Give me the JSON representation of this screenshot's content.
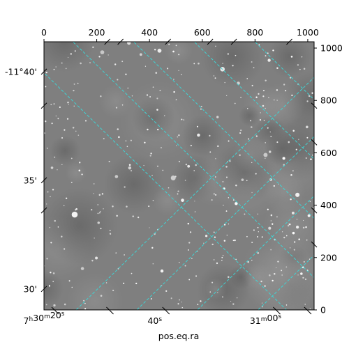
{
  "chart_data": {
    "type": "image",
    "xlabel": "pos.eq.ra",
    "ylabel": "",
    "pixel_axis": {
      "range": [
        0,
        1024
      ],
      "top_ticks": [
        0,
        200,
        400,
        600,
        800,
        1000
      ],
      "right_ticks": [
        0,
        200,
        400,
        600,
        800,
        1000
      ]
    },
    "ra_ticks": [
      {
        "label_h": "7",
        "label_hs": "h",
        "label_m": "30",
        "label_ms": "m",
        "label_s": "20",
        "label_ss": "s",
        "pix": 0
      },
      {
        "label_h": "",
        "label_hs": "",
        "label_m": "",
        "label_ms": "",
        "label_s": "40",
        "label_ss": "s",
        "pix": 420
      },
      {
        "label_h": "",
        "label_hs": "",
        "label_m": "31",
        "label_ms": "m",
        "label_s": "00",
        "label_ss": "s",
        "pix": 840
      }
    ],
    "dec_ticks": [
      {
        "label": "-11°40'",
        "pix": 910
      },
      {
        "label": "35'",
        "pix": 495
      },
      {
        "label": "30'",
        "pix": 80
      }
    ],
    "colors": {
      "grid": "#3fd4d4",
      "background": "#808080",
      "frame": "#000000"
    }
  }
}
